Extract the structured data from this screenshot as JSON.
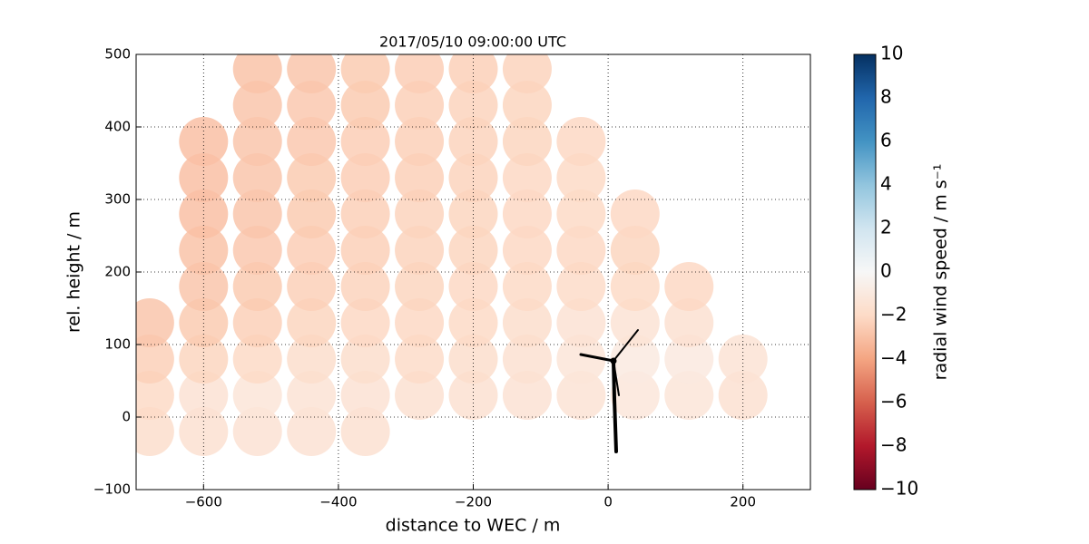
{
  "chart_data": {
    "type": "scatter",
    "title": "2017/05/10 09:00:00 UTC",
    "x_label": "distance to WEC / m",
    "y_label": "rel. height / m",
    "xlim": [
      -700,
      300
    ],
    "ylim": [
      -100,
      500
    ],
    "xticks": [
      {
        "value": -600,
        "label": "−600"
      },
      {
        "value": -400,
        "label": "−400"
      },
      {
        "value": -200,
        "label": "−200"
      },
      0,
      200
    ],
    "yticks": [
      {
        "value": -100,
        "label": "−100"
      },
      0,
      100,
      200,
      300,
      400,
      500
    ],
    "grid": true,
    "x": [
      -680,
      -600,
      -520,
      -440,
      -360,
      -680,
      -600,
      -520,
      -440,
      -360,
      -280,
      -200,
      -120,
      -40,
      40,
      120,
      200,
      -680,
      -600,
      -520,
      -440,
      -360,
      -280,
      -200,
      -120,
      -40,
      40,
      120,
      200,
      -680,
      -600,
      -520,
      -440,
      -360,
      -280,
      -200,
      -120,
      -40,
      40,
      120,
      -600,
      -520,
      -440,
      -360,
      -280,
      -200,
      -120,
      -40,
      40,
      120,
      -600,
      -520,
      -440,
      -360,
      -280,
      -200,
      -120,
      -40,
      40,
      -600,
      -520,
      -440,
      -360,
      -280,
      -200,
      -120,
      -40,
      40,
      -600,
      -520,
      -440,
      -360,
      -280,
      -200,
      -120,
      -40,
      -600,
      -520,
      -440,
      -360,
      -280,
      -200,
      -120,
      -40,
      -520,
      -440,
      -360,
      -280,
      -200,
      -120,
      -520,
      -440,
      -360,
      -280,
      -200,
      -120
    ],
    "y": [
      -20,
      -20,
      -20,
      -20,
      -20,
      30,
      30,
      30,
      30,
      30,
      30,
      30,
      30,
      30,
      30,
      30,
      30,
      80,
      80,
      80,
      80,
      80,
      80,
      80,
      80,
      80,
      80,
      80,
      80,
      130,
      130,
      130,
      130,
      130,
      130,
      130,
      130,
      130,
      130,
      130,
      180,
      180,
      180,
      180,
      180,
      180,
      180,
      180,
      180,
      180,
      230,
      230,
      230,
      230,
      230,
      230,
      230,
      230,
      230,
      280,
      280,
      280,
      280,
      280,
      280,
      280,
      280,
      280,
      330,
      330,
      330,
      330,
      330,
      330,
      330,
      330,
      380,
      380,
      380,
      380,
      380,
      380,
      380,
      380,
      430,
      430,
      430,
      430,
      430,
      430,
      480,
      480,
      480,
      480,
      480,
      480
    ],
    "values": [
      -1.8,
      -1.6,
      -1.5,
      -1.5,
      -1.6,
      -2.0,
      -1.5,
      -1.3,
      -1.4,
      -1.5,
      -1.6,
      -1.6,
      -1.5,
      -1.4,
      -1.2,
      -1.3,
      -1.6,
      -2.4,
      -2.2,
      -2.0,
      -1.8,
      -1.8,
      -1.9,
      -1.8,
      -1.6,
      -1.3,
      -0.9,
      -1.0,
      -1.4,
      -2.8,
      -2.6,
      -2.4,
      -2.2,
      -2.1,
      -2.1,
      -2.0,
      -1.8,
      -1.5,
      -1.4,
      -1.6,
      -2.8,
      -2.6,
      -2.4,
      -2.3,
      -2.2,
      -2.1,
      -2.0,
      -1.9,
      -2.0,
      -2.1,
      -2.9,
      -2.7,
      -2.5,
      -2.4,
      -2.3,
      -2.2,
      -2.1,
      -2.1,
      -2.2,
      -3.0,
      -2.8,
      -2.6,
      -2.4,
      -2.3,
      -2.2,
      -2.1,
      -2.0,
      -2.1,
      -3.0,
      -2.8,
      -2.6,
      -2.5,
      -2.4,
      -2.3,
      -2.1,
      -2.0,
      -3.0,
      -2.8,
      -2.7,
      -2.5,
      -2.4,
      -2.3,
      -2.2,
      -2.1,
      -2.8,
      -2.7,
      -2.6,
      -2.4,
      -2.3,
      -2.2,
      -2.9,
      -2.8,
      -2.6,
      -2.5,
      -2.4,
      -2.3
    ],
    "colorbar": {
      "label": "radial wind speed / m s⁻¹",
      "lim": [
        -10,
        10
      ],
      "ticks": [
        {
          "value": -10,
          "label": "−10"
        },
        {
          "value": -8,
          "label": "−8"
        },
        {
          "value": -6,
          "label": "−6"
        },
        {
          "value": -4,
          "label": "−4"
        },
        {
          "value": -2,
          "label": "−2"
        },
        0,
        2,
        4,
        6,
        8,
        10
      ],
      "colormap": [
        "#67001f",
        "#b2182b",
        "#d6604d",
        "#f4a582",
        "#fddbc7",
        "#f7f7f7",
        "#d1e5f0",
        "#92c5de",
        "#4393c3",
        "#2166ac",
        "#053061"
      ]
    }
  }
}
